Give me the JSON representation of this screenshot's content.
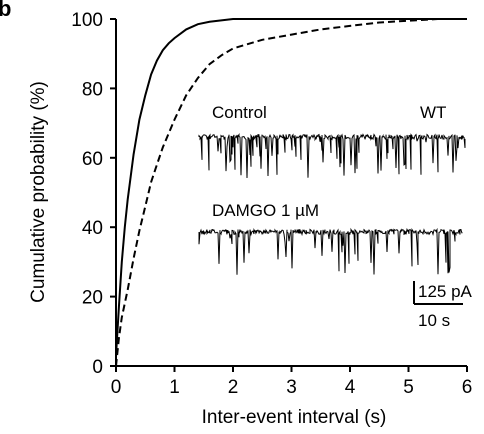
{
  "chart_data": {
    "type": "line",
    "panel_letter": "b",
    "title": "",
    "xlabel": "Inter-event interval (s)",
    "ylabel": "Cumulative probability (%)",
    "xlim": [
      0,
      6
    ],
    "ylim": [
      0,
      100
    ],
    "xticks": [
      "0",
      "1",
      "2",
      "3",
      "4",
      "5",
      "6"
    ],
    "yticks": [
      "0",
      "20",
      "40",
      "60",
      "80",
      "100"
    ],
    "grid": false,
    "series": [
      {
        "name": "Control",
        "style": "solid",
        "color": "#000000",
        "x": [
          0,
          0.05,
          0.1,
          0.15,
          0.2,
          0.3,
          0.4,
          0.5,
          0.6,
          0.7,
          0.8,
          0.9,
          1.0,
          1.2,
          1.4,
          1.6,
          1.8,
          2.0,
          2.5,
          3.0,
          4.0,
          5.0,
          6.0
        ],
        "y": [
          3,
          17,
          30,
          40,
          48,
          61,
          71,
          78,
          84,
          88,
          91,
          93,
          94.5,
          97,
          98.5,
          99.2,
          99.6,
          100,
          100,
          100,
          100,
          100,
          100
        ]
      },
      {
        "name": "DAMGO 1 µM",
        "style": "dashed",
        "color": "#000000",
        "x": [
          0,
          0.05,
          0.1,
          0.2,
          0.3,
          0.4,
          0.5,
          0.6,
          0.7,
          0.8,
          1.0,
          1.2,
          1.4,
          1.6,
          1.8,
          2.0,
          2.5,
          3.0,
          3.5,
          4.0,
          4.5,
          5.0,
          5.5,
          6.0
        ],
        "y": [
          0,
          8,
          14,
          22,
          31,
          39,
          46,
          53,
          58,
          63,
          71,
          78,
          83,
          87,
          89.5,
          91.5,
          94,
          95.5,
          97,
          98,
          99,
          99.5,
          100,
          100
        ]
      }
    ],
    "inset": {
      "genotype": "WT",
      "trace_labels": [
        "Control",
        "DAMGO 1 µM"
      ],
      "scale_current": "125 pA",
      "scale_time": "10 s"
    }
  }
}
